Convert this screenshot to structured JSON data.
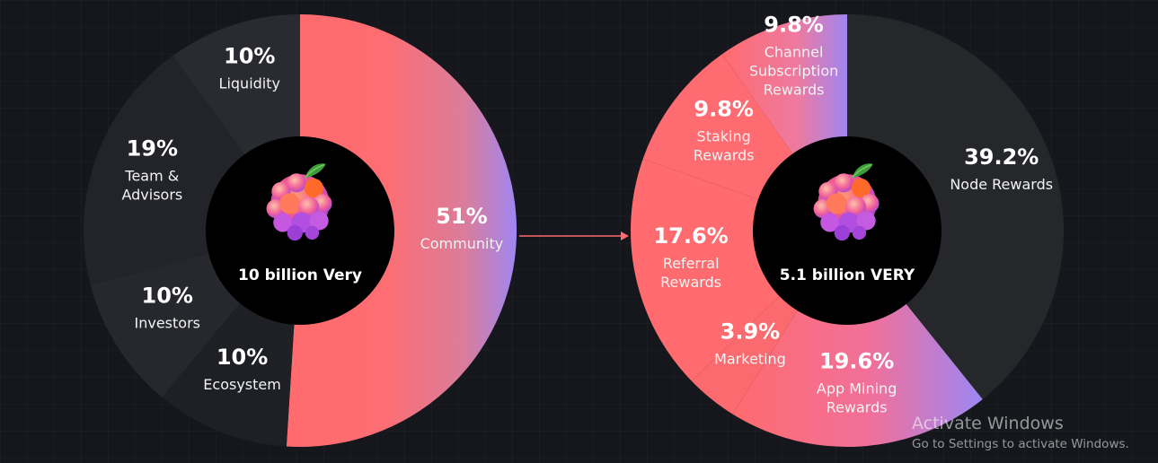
{
  "chart_data": [
    {
      "type": "pie",
      "center_label": "10 billion Very",
      "slices": [
        {
          "label": "Community",
          "value": 51,
          "value_label": "51%",
          "fill": "gradient"
        },
        {
          "label": "Ecosystem",
          "value": 10,
          "value_label": "10%",
          "fill": "#1e2025"
        },
        {
          "label": "Investors",
          "value": 10,
          "value_label": "10%",
          "fill": "#26282d"
        },
        {
          "label": "Team & Advisors",
          "value": 19,
          "value_label": "19%",
          "fill": "#222429"
        },
        {
          "label": "Liquidity",
          "value": 10,
          "value_label": "10%",
          "fill": "#292b30"
        }
      ]
    },
    {
      "type": "pie",
      "center_label": "5.1 billion VERY",
      "slices": [
        {
          "label": "Node Rewards",
          "value": 39.2,
          "value_label": "39.2%",
          "fill": "#25272b"
        },
        {
          "label": "App Mining Rewards",
          "value": 19.6,
          "value_label": "19.6%",
          "fill": "gradient"
        },
        {
          "label": "Marketing",
          "value": 3.9,
          "value_label": "3.9%",
          "fill": "#fb6a6e"
        },
        {
          "label": "Referral Rewards",
          "value": 17.6,
          "value_label": "17.6%",
          "fill": "#ff6b6e"
        },
        {
          "label": "Staking Rewards",
          "value": 9.8,
          "value_label": "9.8%",
          "fill": "#fe6b70"
        },
        {
          "label": "Channel Subscription Rewards",
          "value": 9.8,
          "value_label": "9.8%",
          "fill": "gradient"
        }
      ]
    }
  ],
  "colors": {
    "coral": "#ff6b6e",
    "purple": "#9b86f5",
    "arrow": "#ff6b6e",
    "hub": "#000000"
  },
  "icons": [
    "very-fruit-logo-icon",
    "arrow-right-icon"
  ],
  "watermark": {
    "title": "Activate Windows",
    "subtitle": "Go to Settings to activate Windows."
  }
}
